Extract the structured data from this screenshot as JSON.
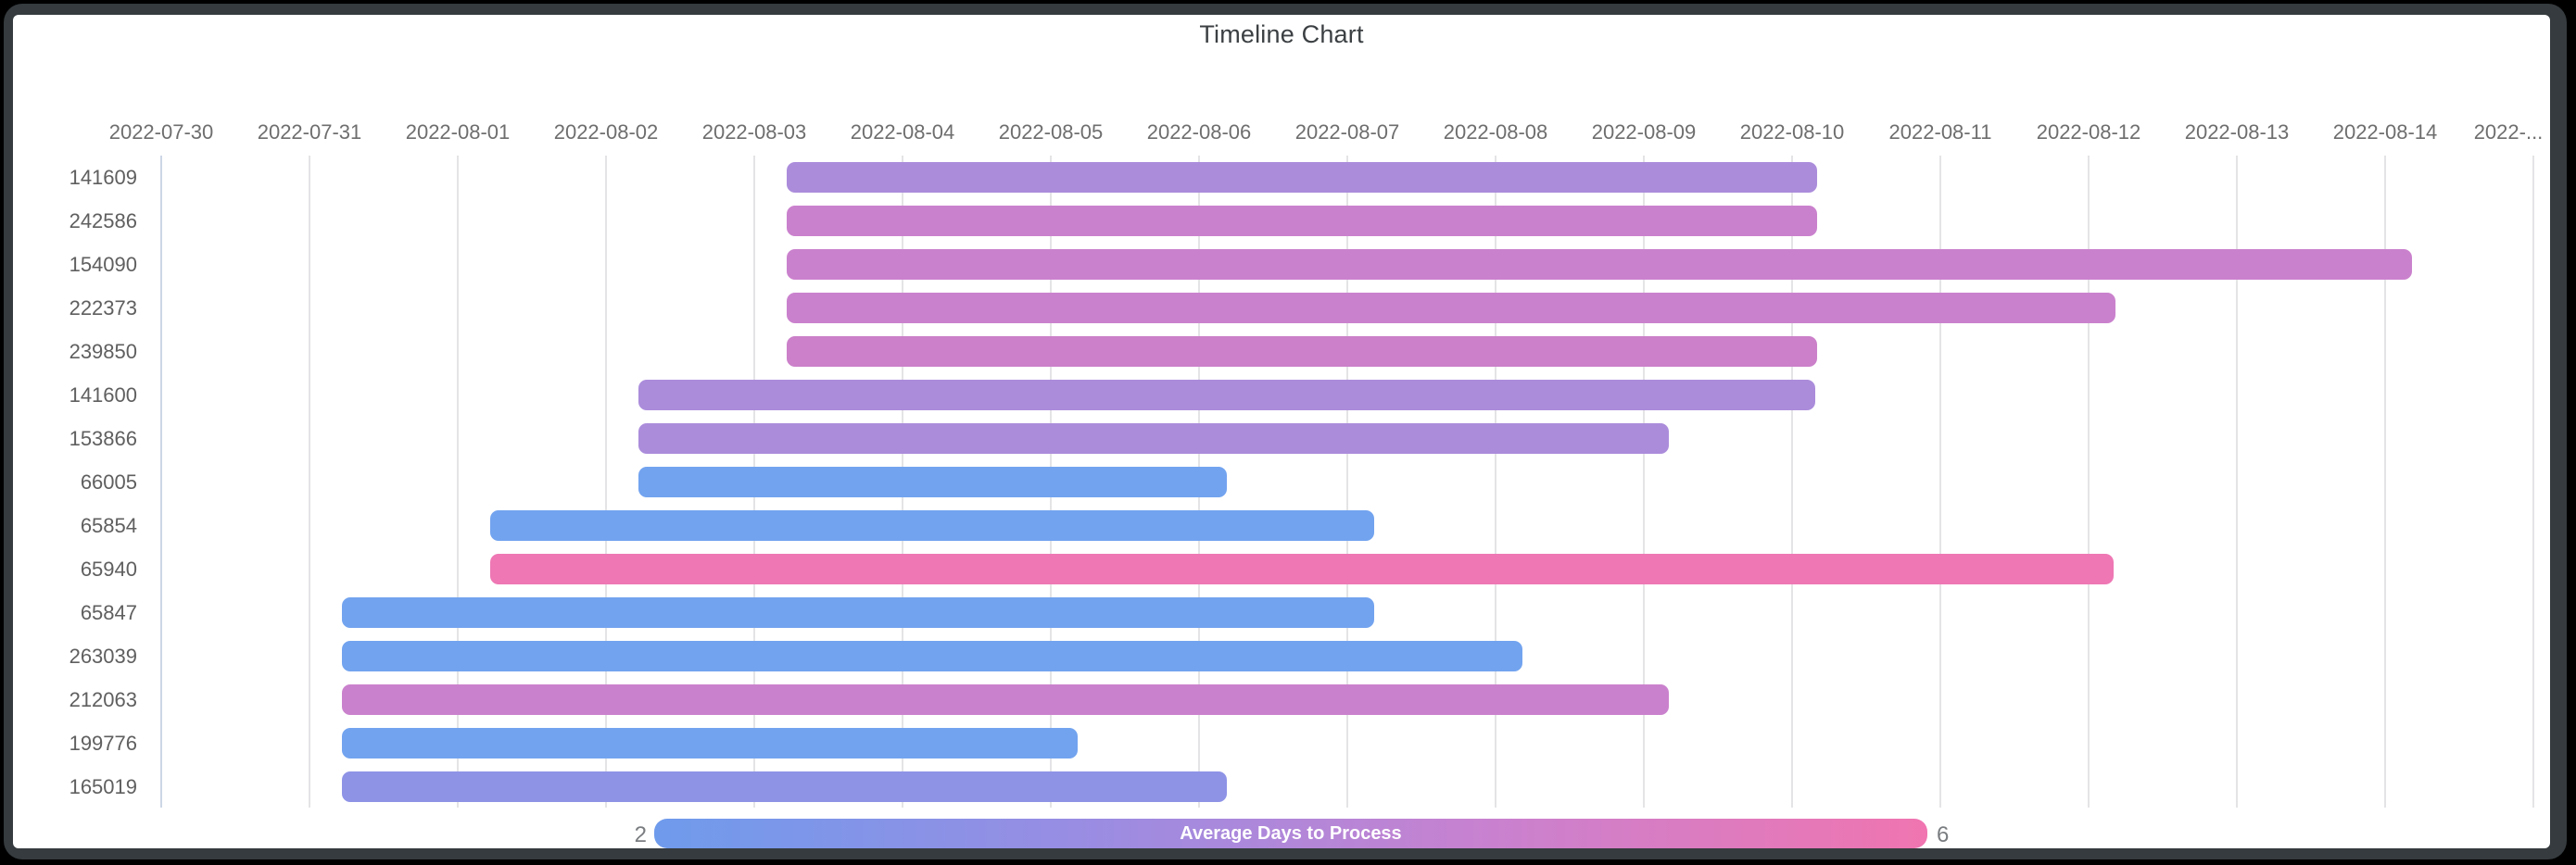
{
  "chart_data": {
    "type": "timeline-bar",
    "title": "Timeline Chart",
    "x_axis": {
      "start_date": "2022-07-30",
      "days_per_tick": 1,
      "tick_labels": [
        "2022-07-30",
        "2022-07-31",
        "2022-08-01",
        "2022-08-02",
        "2022-08-03",
        "2022-08-04",
        "2022-08-05",
        "2022-08-06",
        "2022-08-07",
        "2022-08-08",
        "2022-08-09",
        "2022-08-10",
        "2022-08-11",
        "2022-08-12",
        "2022-08-13",
        "2022-08-14",
        "2022-..."
      ]
    },
    "rows": [
      {
        "id": "141609",
        "start_date": "2022-08-03",
        "end_date": "2022-08-10",
        "start_day": 4.22,
        "end_day": 11.17,
        "color": "#ab8cdb",
        "avg_days_est": 3.6
      },
      {
        "id": "242586",
        "start_date": "2022-08-03",
        "end_date": "2022-08-10",
        "start_day": 4.22,
        "end_day": 11.17,
        "color": "#ca81cd",
        "avg_days_est": 4.6
      },
      {
        "id": "154090",
        "start_date": "2022-08-03",
        "end_date": "2022-08-14",
        "start_day": 4.22,
        "end_day": 15.18,
        "color": "#ca81cd",
        "avg_days_est": 4.6
      },
      {
        "id": "222373",
        "start_date": "2022-08-03",
        "end_date": "2022-08-12",
        "start_day": 4.22,
        "end_day": 13.18,
        "color": "#ca81cd",
        "avg_days_est": 4.6
      },
      {
        "id": "239850",
        "start_date": "2022-08-03",
        "end_date": "2022-08-10",
        "start_day": 4.22,
        "end_day": 11.17,
        "color": "#cb80c9",
        "avg_days_est": 4.7
      },
      {
        "id": "141600",
        "start_date": "2022-08-02",
        "end_date": "2022-08-10",
        "start_day": 3.22,
        "end_day": 11.16,
        "color": "#ab8cdb",
        "avg_days_est": 3.6
      },
      {
        "id": "153866",
        "start_date": "2022-08-02",
        "end_date": "2022-08-09",
        "start_day": 3.22,
        "end_day": 10.17,
        "color": "#ab8cdb",
        "avg_days_est": 3.6
      },
      {
        "id": "66005",
        "start_date": "2022-08-02",
        "end_date": "2022-08-06",
        "start_day": 3.22,
        "end_day": 7.19,
        "color": "#72a3ef",
        "avg_days_est": 2.1
      },
      {
        "id": "65854",
        "start_date": "2022-08-01",
        "end_date": "2022-08-07",
        "start_day": 2.22,
        "end_day": 8.18,
        "color": "#72a3ef",
        "avg_days_est": 2.1
      },
      {
        "id": "65940",
        "start_date": "2022-08-01",
        "end_date": "2022-08-12",
        "start_day": 2.22,
        "end_day": 13.17,
        "color": "#ee77b4",
        "avg_days_est": 5.9
      },
      {
        "id": "65847",
        "start_date": "2022-07-31",
        "end_date": "2022-08-07",
        "start_day": 1.22,
        "end_day": 8.18,
        "color": "#72a3ef",
        "avg_days_est": 2.1
      },
      {
        "id": "263039",
        "start_date": "2022-07-31",
        "end_date": "2022-08-08",
        "start_day": 1.22,
        "end_day": 9.18,
        "color": "#72a3ef",
        "avg_days_est": 2.1
      },
      {
        "id": "212063",
        "start_date": "2022-07-31",
        "end_date": "2022-08-09",
        "start_day": 1.22,
        "end_day": 10.17,
        "color": "#ca81cd",
        "avg_days_est": 4.6
      },
      {
        "id": "199776",
        "start_date": "2022-07-31",
        "end_date": "2022-08-05",
        "start_day": 1.22,
        "end_day": 6.18,
        "color": "#72a3ef",
        "avg_days_est": 2.1
      },
      {
        "id": "165019",
        "start_date": "2022-07-31",
        "end_date": "2022-08-06",
        "start_day": 1.22,
        "end_day": 7.19,
        "color": "#8e93e6",
        "avg_days_est": 2.8
      }
    ],
    "legend": {
      "label": "Average Days to Process",
      "min": 2,
      "max": 6,
      "min_label": "2",
      "max_label": "6",
      "gradient": [
        "#6f9bec",
        "#988de3",
        "#c981cf",
        "#f075b0"
      ]
    },
    "grid": true,
    "legend_position": "bottom"
  }
}
